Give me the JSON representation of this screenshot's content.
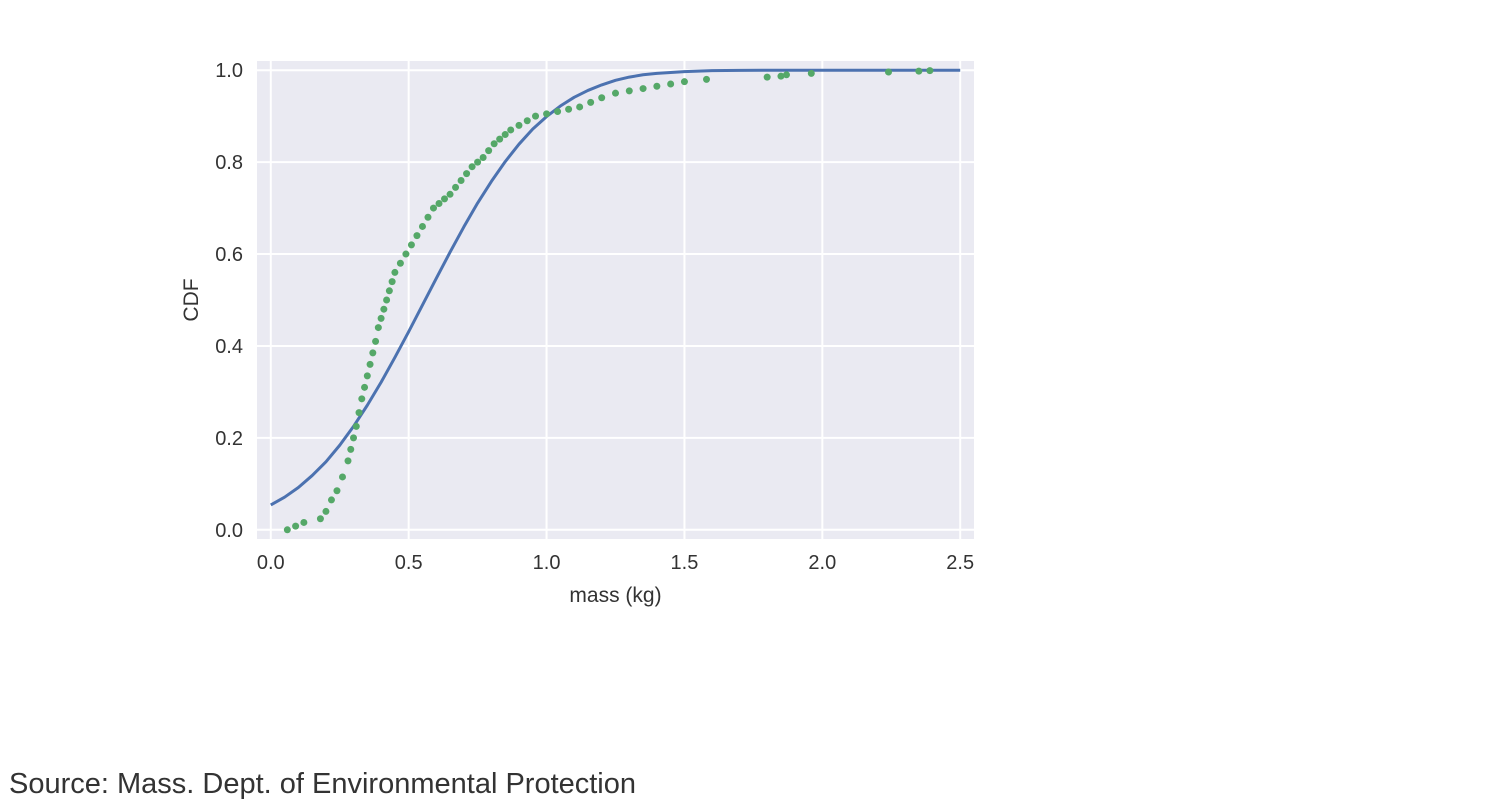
{
  "chart_data": {
    "type": "line",
    "title": "",
    "xlabel": "mass (kg)",
    "ylabel": "CDF",
    "xlim": [
      -0.05,
      2.55
    ],
    "ylim": [
      -0.02,
      1.02
    ],
    "x_ticks": [
      0.0,
      0.5,
      1.0,
      1.5,
      2.0,
      2.5
    ],
    "x_tick_labels": [
      "0.0",
      "0.5",
      "1.0",
      "1.5",
      "2.0",
      "2.5"
    ],
    "y_ticks": [
      0.0,
      0.2,
      0.4,
      0.6,
      0.8,
      1.0
    ],
    "y_tick_labels": [
      "0.0",
      "0.2",
      "0.4",
      "0.6",
      "0.8",
      "1.0"
    ],
    "grid": true,
    "background": "#EAEAF2",
    "legend": null,
    "series": [
      {
        "kind": "line",
        "color": "#4C72B0",
        "x": [
          0.0,
          0.05,
          0.1,
          0.15,
          0.2,
          0.25,
          0.3,
          0.35,
          0.4,
          0.45,
          0.5,
          0.55,
          0.6,
          0.65,
          0.7,
          0.75,
          0.8,
          0.85,
          0.9,
          0.95,
          1.0,
          1.05,
          1.1,
          1.15,
          1.2,
          1.25,
          1.3,
          1.35,
          1.4,
          1.45,
          1.5,
          1.55,
          1.6,
          1.7,
          1.8,
          1.9,
          2.0,
          2.25,
          2.5
        ],
        "y": [
          0.054,
          0.071,
          0.092,
          0.118,
          0.148,
          0.184,
          0.225,
          0.271,
          0.321,
          0.375,
          0.431,
          0.489,
          0.547,
          0.604,
          0.659,
          0.711,
          0.758,
          0.801,
          0.839,
          0.872,
          0.899,
          0.922,
          0.941,
          0.956,
          0.968,
          0.978,
          0.985,
          0.99,
          0.993,
          0.995,
          0.997,
          0.998,
          0.999,
          0.9995,
          0.9998,
          0.9999,
          1.0,
          1.0,
          1.0
        ]
      },
      {
        "kind": "scatter",
        "color": "#55A868",
        "x": [
          0.06,
          0.09,
          0.12,
          0.18,
          0.2,
          0.22,
          0.24,
          0.26,
          0.28,
          0.29,
          0.3,
          0.31,
          0.32,
          0.33,
          0.34,
          0.35,
          0.36,
          0.37,
          0.38,
          0.39,
          0.4,
          0.41,
          0.42,
          0.43,
          0.44,
          0.45,
          0.47,
          0.49,
          0.51,
          0.53,
          0.55,
          0.57,
          0.59,
          0.61,
          0.63,
          0.65,
          0.67,
          0.69,
          0.71,
          0.73,
          0.75,
          0.77,
          0.79,
          0.81,
          0.83,
          0.85,
          0.87,
          0.9,
          0.93,
          0.96,
          1.0,
          1.04,
          1.08,
          1.12,
          1.16,
          1.2,
          1.25,
          1.3,
          1.35,
          1.4,
          1.45,
          1.5,
          1.58,
          1.8,
          1.85,
          1.87,
          1.96,
          2.24,
          2.35,
          2.39
        ],
        "y": [
          0.0,
          0.008,
          0.016,
          0.024,
          0.04,
          0.065,
          0.085,
          0.115,
          0.15,
          0.175,
          0.2,
          0.225,
          0.255,
          0.285,
          0.31,
          0.335,
          0.36,
          0.385,
          0.41,
          0.44,
          0.46,
          0.48,
          0.5,
          0.52,
          0.54,
          0.56,
          0.58,
          0.6,
          0.62,
          0.64,
          0.66,
          0.68,
          0.7,
          0.71,
          0.72,
          0.73,
          0.745,
          0.76,
          0.775,
          0.79,
          0.8,
          0.81,
          0.825,
          0.84,
          0.85,
          0.86,
          0.87,
          0.88,
          0.89,
          0.9,
          0.905,
          0.91,
          0.915,
          0.92,
          0.93,
          0.94,
          0.95,
          0.955,
          0.96,
          0.965,
          0.97,
          0.975,
          0.98,
          0.985,
          0.987,
          0.99,
          0.993,
          0.996,
          0.998,
          0.999
        ]
      }
    ]
  },
  "footer": {
    "source_text": "Source: Mass. Dept. of Environmental Protection"
  }
}
